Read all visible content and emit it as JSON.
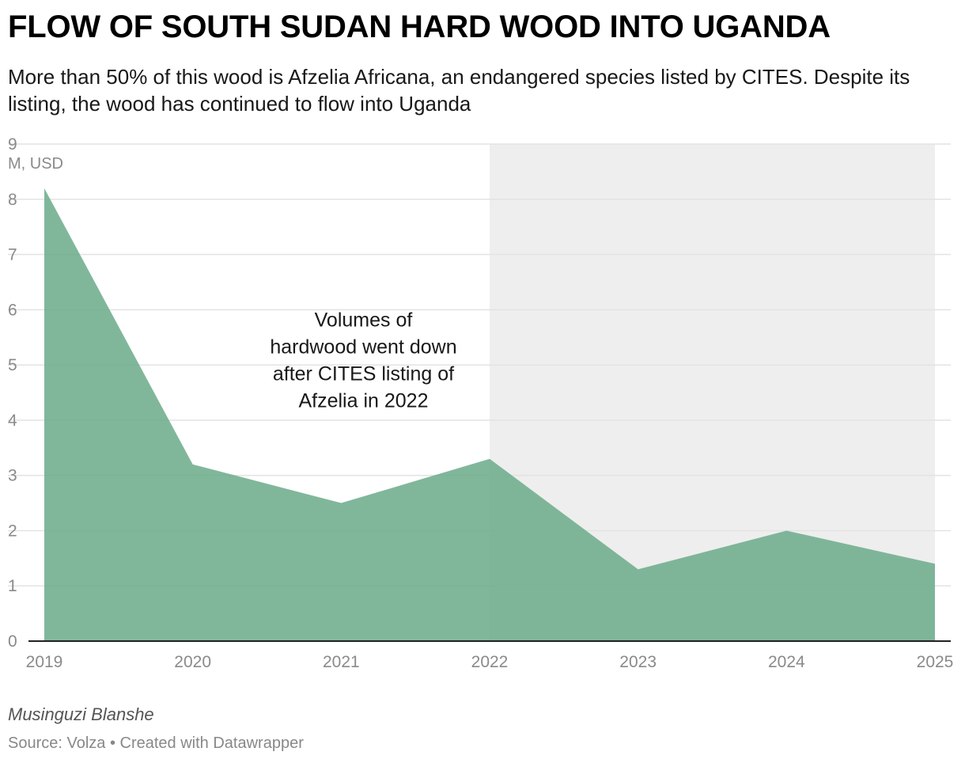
{
  "title": "FLOW OF SOUTH SUDAN HARD WOOD INTO UGANDA",
  "subtitle": "More than 50% of this wood is Afzelia Africana, an endangered species listed by CITES. Despite its listing, the wood has continued to flow into Uganda",
  "byline": "Musinguzi Blanshe",
  "source": "Source: Volza • Created with Datawrapper",
  "chart_data": {
    "type": "area",
    "x": [
      2019,
      2020,
      2021,
      2022,
      2023,
      2024,
      2025
    ],
    "series": [
      {
        "values": [
          8.2,
          3.2,
          2.5,
          3.3,
          1.3,
          2.0,
          1.4
        ],
        "color": "#6aaa8a"
      }
    ],
    "x_tick_labels": [
      "2019",
      "2020",
      "2021",
      "2022",
      "2023",
      "2024",
      "2025"
    ],
    "y_ticks": [
      "0",
      "1",
      "2",
      "3",
      "4",
      "5",
      "6",
      "7",
      "8",
      "9"
    ],
    "ylabel": "M, USD",
    "ylim": [
      0,
      9
    ],
    "xlim": [
      2019,
      2025
    ],
    "grid": true,
    "shaded_range": {
      "from": 2022,
      "to": 2025,
      "color": "#eeeeee"
    },
    "annotation": {
      "lines": [
        "Volumes of",
        "hardwood went down",
        "after CITES listing of",
        "Afzelia in 2022"
      ],
      "x": 2021.15,
      "y": 5.7
    }
  }
}
